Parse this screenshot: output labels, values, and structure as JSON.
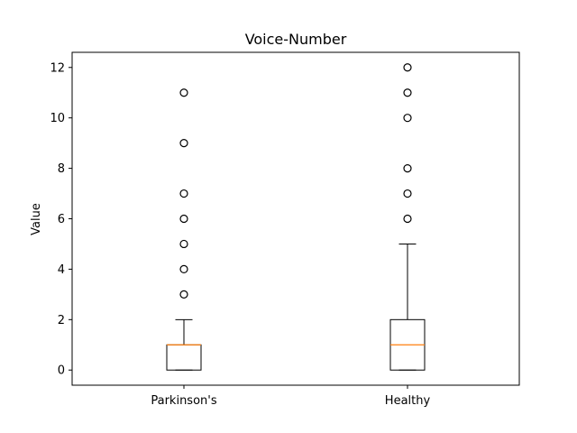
{
  "chart_data": {
    "type": "box",
    "title": "Voice-Number",
    "xlabel": "",
    "ylabel": "Value",
    "ylim": [
      -0.6,
      12.6
    ],
    "yticks": [
      0,
      2,
      4,
      6,
      8,
      10,
      12
    ],
    "grid": false,
    "categories": [
      "Parkinson's",
      "Healthy"
    ],
    "boxes": [
      {
        "q1": 0,
        "median": 1,
        "q3": 1,
        "whisker_low": 0,
        "whisker_high": 2,
        "outliers": [
          3,
          4,
          5,
          6,
          7,
          9,
          11
        ]
      },
      {
        "q1": 0,
        "median": 1,
        "q3": 2,
        "whisker_low": 0,
        "whisker_high": 5,
        "outliers": [
          6,
          7,
          8,
          10,
          11,
          12
        ]
      }
    ],
    "colors": {
      "box": "#000000",
      "median": "#ff7f0e",
      "flier": "#000000"
    }
  }
}
